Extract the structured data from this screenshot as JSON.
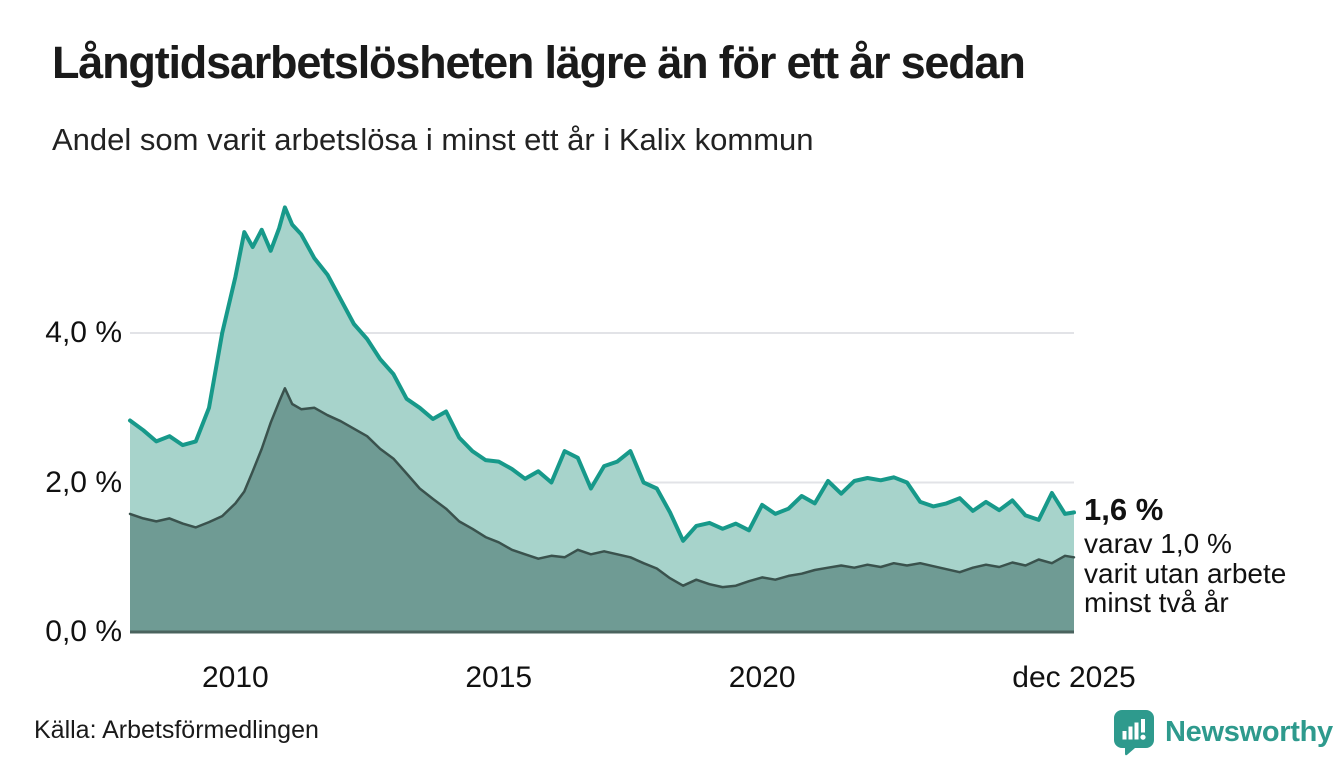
{
  "header": {
    "title": "Långtidsarbetslösheten lägre än för ett år sedan",
    "subtitle": "Andel som varit arbetslösa i minst ett år i Kalix kommun"
  },
  "footer": {
    "source": "Källa: Arbetsförmedlingen",
    "brand": "Newsworthy",
    "brand_color": "#2E9A8D"
  },
  "colors": {
    "total_line": "#17998A",
    "total_fill": "#A7D3CB",
    "two_year_line": "#3A524D",
    "two_year_fill": "#6F9B94",
    "gridline": "#E2E3E7",
    "baseline": "#4A635E"
  },
  "chart_data": {
    "type": "area",
    "title": "Långtidsarbetslösheten lägre än för ett år sedan",
    "subtitle": "Andel som varit arbetslösa i minst ett år i Kalix kommun",
    "xlabel": "",
    "ylabel": "",
    "grid": true,
    "legend_position": "none",
    "x_unit": "decimal_year",
    "ylim": [
      0,
      5.8
    ],
    "x": [
      2008.0,
      2008.25,
      2008.5,
      2008.75,
      2009.0,
      2009.25,
      2009.5,
      2009.75,
      2010.0,
      2010.17,
      2010.33,
      2010.5,
      2010.67,
      2010.83,
      2010.94,
      2011.08,
      2011.25,
      2011.5,
      2011.75,
      2012.0,
      2012.25,
      2012.5,
      2012.75,
      2013.0,
      2013.25,
      2013.5,
      2013.75,
      2014.0,
      2014.25,
      2014.5,
      2014.75,
      2015.0,
      2015.25,
      2015.5,
      2015.75,
      2016.0,
      2016.25,
      2016.5,
      2016.75,
      2017.0,
      2017.25,
      2017.5,
      2017.75,
      2018.0,
      2018.25,
      2018.5,
      2018.75,
      2019.0,
      2019.25,
      2019.5,
      2019.75,
      2020.0,
      2020.25,
      2020.5,
      2020.75,
      2021.0,
      2021.25,
      2021.5,
      2021.75,
      2022.0,
      2022.25,
      2022.5,
      2022.75,
      2023.0,
      2023.25,
      2023.5,
      2023.75,
      2024.0,
      2024.25,
      2024.5,
      2024.75,
      2025.0,
      2025.25,
      2025.5,
      2025.75,
      2025.92
    ],
    "series": [
      {
        "name": "Andel som varit arbetslösa minst ett år",
        "stroke": "#17998A",
        "fill": "#A7D3CB",
        "stroke_width": 4,
        "end_label": "1,6 %",
        "values": [
          2.83,
          2.7,
          2.55,
          2.62,
          2.5,
          2.55,
          3.0,
          4.0,
          4.75,
          5.35,
          5.15,
          5.38,
          5.1,
          5.4,
          5.68,
          5.45,
          5.32,
          5.0,
          4.78,
          4.45,
          4.12,
          3.92,
          3.65,
          3.45,
          3.12,
          3.0,
          2.85,
          2.95,
          2.6,
          2.42,
          2.3,
          2.28,
          2.18,
          2.05,
          2.15,
          2.0,
          2.42,
          2.33,
          1.92,
          2.22,
          2.28,
          2.42,
          2.0,
          1.92,
          1.6,
          1.22,
          1.42,
          1.46,
          1.38,
          1.45,
          1.36,
          1.7,
          1.58,
          1.65,
          1.82,
          1.72,
          2.02,
          1.85,
          2.02,
          2.06,
          2.03,
          2.07,
          2.0,
          1.74,
          1.68,
          1.72,
          1.79,
          1.62,
          1.74,
          1.63,
          1.76,
          1.56,
          1.5,
          1.86,
          1.58,
          1.6
        ]
      },
      {
        "name": "varav utan arbete minst två år",
        "stroke": "#3A524D",
        "fill": "#6F9B94",
        "stroke_width": 2.5,
        "end_label": "1,0 %",
        "values": [
          1.58,
          1.52,
          1.48,
          1.52,
          1.45,
          1.4,
          1.47,
          1.55,
          1.72,
          1.88,
          2.15,
          2.45,
          2.8,
          3.08,
          3.26,
          3.05,
          2.98,
          3.0,
          2.9,
          2.82,
          2.72,
          2.62,
          2.45,
          2.32,
          2.12,
          1.92,
          1.78,
          1.65,
          1.48,
          1.38,
          1.27,
          1.2,
          1.1,
          1.04,
          0.98,
          1.02,
          1.0,
          1.1,
          1.04,
          1.08,
          1.04,
          1.0,
          0.92,
          0.85,
          0.72,
          0.62,
          0.7,
          0.64,
          0.6,
          0.62,
          0.68,
          0.73,
          0.7,
          0.75,
          0.78,
          0.83,
          0.86,
          0.89,
          0.86,
          0.9,
          0.87,
          0.92,
          0.89,
          0.92,
          0.88,
          0.84,
          0.8,
          0.86,
          0.9,
          0.87,
          0.93,
          0.89,
          0.97,
          0.92,
          1.02,
          1.0
        ]
      }
    ],
    "yticks": [
      {
        "value": 0,
        "label": "0,0 %"
      },
      {
        "value": 2,
        "label": "2,0 %"
      },
      {
        "value": 4,
        "label": "4,0 %"
      }
    ],
    "xticks": [
      {
        "value": 2010,
        "label": "2010"
      },
      {
        "value": 2015,
        "label": "2015"
      },
      {
        "value": 2020,
        "label": "2020"
      },
      {
        "value": 2025.92,
        "label": "dec 2025"
      }
    ],
    "annotation": {
      "value_label": "1,6 %",
      "lines": [
        "varav 1,0 %",
        "varit utan arbete",
        "minst två år"
      ]
    }
  }
}
